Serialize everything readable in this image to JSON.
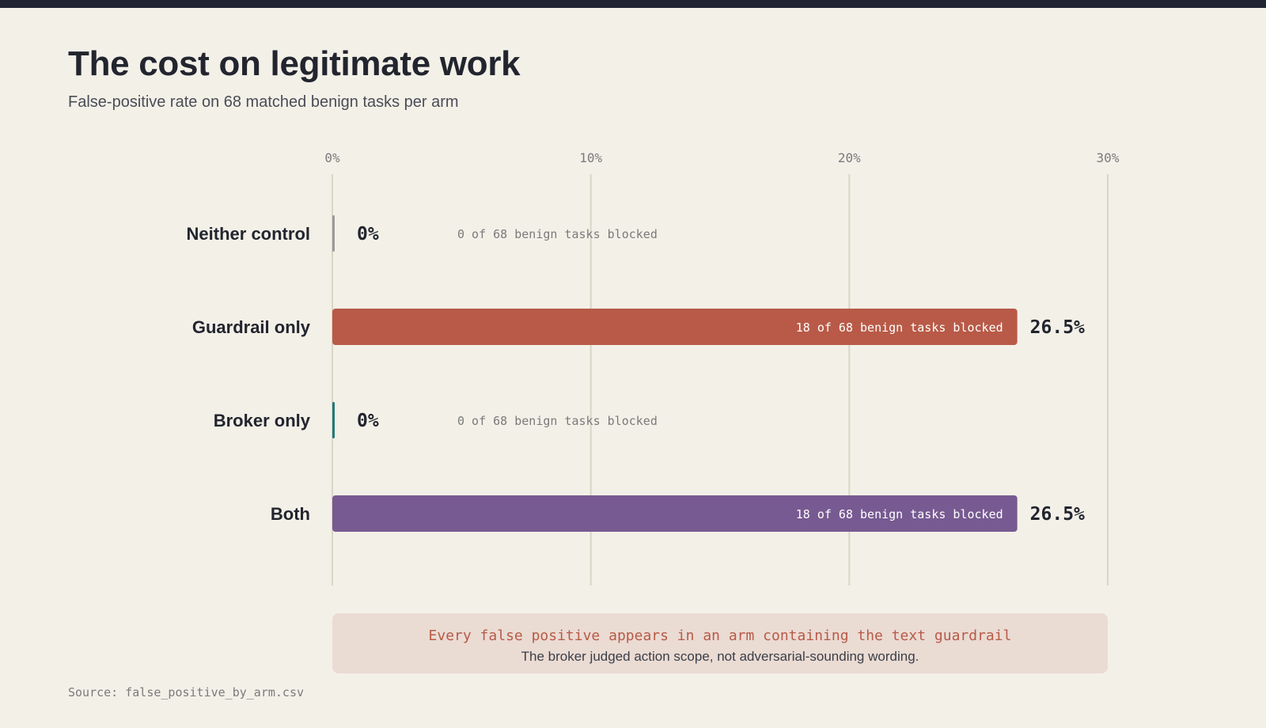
{
  "header": {
    "title": "The cost on legitimate work",
    "subtitle": "False-positive rate on 68 matched benign tasks per arm"
  },
  "chart_data": {
    "type": "bar",
    "orientation": "horizontal",
    "title": "The cost on legitimate work",
    "subtitle": "False-positive rate on 68 matched benign tasks per arm",
    "xlim": [
      0,
      30
    ],
    "ticks": [
      0,
      10,
      20,
      30
    ],
    "tick_labels": [
      "0%",
      "10%",
      "20%",
      "30%"
    ],
    "grid": true,
    "categories": [
      "Neither control",
      "Guardrail only",
      "Broker only",
      "Both"
    ],
    "values": [
      0,
      26.5,
      0,
      26.5
    ],
    "value_labels": [
      "0%",
      "26.5%",
      "0%",
      "26.5%"
    ],
    "bar_annotations": [
      "0 of 68 benign tasks blocked",
      "18 of 68 benign tasks blocked",
      "0 of 68 benign tasks blocked",
      "18 of 68 benign tasks blocked"
    ],
    "colors": [
      "#9a9a9a",
      "#b85a47",
      "#1f7a78",
      "#775a91"
    ]
  },
  "callout": {
    "headline": "Every false positive appears in an arm containing the text guardrail",
    "text": "The broker judged action scope, not adversarial-sounding wording."
  },
  "source": "Source: false_positive_by_arm.csv"
}
